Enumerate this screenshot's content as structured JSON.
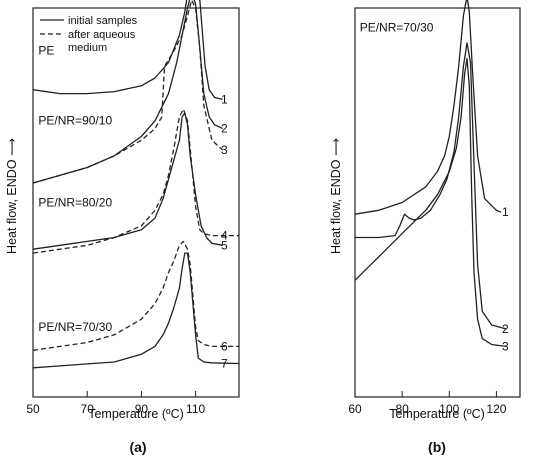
{
  "chart_data": [
    {
      "panel_label": "(a)",
      "type": "line",
      "xlabel": "Temperature (ºC)",
      "ylabel": "Heat flow, ENDO",
      "xlim": [
        50,
        126
      ],
      "x_ticks": [
        50,
        70,
        90,
        110
      ],
      "grid": false,
      "legend": {
        "placement": "top-left",
        "entries": [
          {
            "style": "solid",
            "label": "initial samples"
          },
          {
            "style": "dashed",
            "label": "after aqueous medium"
          }
        ]
      },
      "annotations": [
        {
          "text": "PE",
          "x": 52,
          "y": 0.88
        },
        {
          "text": "PE/NR=90/10",
          "x": 52,
          "y": 0.7
        },
        {
          "text": "PE/NR=80/20",
          "x": 52,
          "y": 0.49
        },
        {
          "text": "PE/NR=70/30",
          "x": 52,
          "y": 0.17
        }
      ],
      "series": [
        {
          "name": "1",
          "style": "solid",
          "x": [
            50,
            60,
            70,
            80,
            90,
            95,
            100,
            104,
            106,
            108,
            109.5,
            110.5,
            112,
            113.5,
            115,
            117,
            120
          ],
          "y": [
            0.79,
            0.78,
            0.78,
            0.785,
            0.8,
            0.82,
            0.86,
            0.93,
            0.99,
            1.08,
            1.12,
            1.11,
            0.98,
            0.85,
            0.79,
            0.77,
            0.765
          ]
        },
        {
          "name": "2",
          "style": "solid",
          "x": [
            50,
            60,
            70,
            80,
            90,
            95,
            100,
            103,
            105,
            107,
            108.5,
            110,
            111.5,
            113,
            115,
            117,
            120
          ],
          "y": [
            0.55,
            0.57,
            0.59,
            0.62,
            0.67,
            0.71,
            0.78,
            0.86,
            0.93,
            1.0,
            1.04,
            1.01,
            0.9,
            0.78,
            0.72,
            0.7,
            0.69
          ]
        },
        {
          "name": "3",
          "style": "dashed",
          "x": [
            50,
            60,
            70,
            80,
            90,
            95,
            97.5,
            98.5,
            102,
            105,
            107,
            108.5,
            110,
            111.5,
            113,
            116,
            120
          ],
          "y": [
            0.55,
            0.57,
            0.59,
            0.62,
            0.66,
            0.69,
            0.72,
            0.85,
            0.89,
            0.93,
            0.98,
            1.02,
            1.0,
            0.9,
            0.75,
            0.66,
            0.635
          ]
        },
        {
          "name": "4",
          "style": "dashed",
          "x": [
            50,
            60,
            70,
            80,
            90,
            95,
            98,
            100,
            102,
            104,
            105.5,
            107,
            108.5,
            110,
            111.5,
            113,
            116,
            120,
            126
          ],
          "y": [
            0.37,
            0.38,
            0.39,
            0.41,
            0.44,
            0.48,
            0.52,
            0.57,
            0.64,
            0.72,
            0.74,
            0.71,
            0.6,
            0.49,
            0.43,
            0.42,
            0.415,
            0.415,
            0.415
          ]
        },
        {
          "name": "5",
          "style": "solid",
          "x": [
            50,
            60,
            70,
            80,
            90,
            95,
            98,
            100,
            102,
            104,
            105,
            106,
            107,
            108,
            110,
            112,
            114,
            116,
            120
          ],
          "y": [
            0.38,
            0.39,
            0.4,
            0.41,
            0.43,
            0.46,
            0.51,
            0.56,
            0.61,
            0.66,
            0.72,
            0.73,
            0.7,
            0.62,
            0.52,
            0.44,
            0.41,
            0.395,
            0.39
          ]
        },
        {
          "name": "6",
          "style": "dashed",
          "x": [
            50,
            60,
            70,
            80,
            90,
            95,
            98,
            100,
            102,
            104,
            105.5,
            107,
            108,
            109,
            110,
            111,
            113,
            116,
            120,
            126
          ],
          "y": [
            0.12,
            0.13,
            0.14,
            0.16,
            0.2,
            0.24,
            0.28,
            0.32,
            0.35,
            0.39,
            0.4,
            0.38,
            0.34,
            0.26,
            0.18,
            0.145,
            0.135,
            0.13,
            0.13,
            0.13
          ]
        },
        {
          "name": "7",
          "style": "solid",
          "x": [
            50,
            60,
            70,
            80,
            90,
            95,
            98,
            100,
            102,
            104,
            105,
            106,
            107,
            108,
            109,
            110,
            111,
            113,
            116,
            120,
            126
          ],
          "y": [
            0.075,
            0.08,
            0.085,
            0.09,
            0.11,
            0.13,
            0.16,
            0.19,
            0.23,
            0.28,
            0.33,
            0.37,
            0.37,
            0.32,
            0.24,
            0.16,
            0.1,
            0.09,
            0.088,
            0.087,
            0.086
          ]
        }
      ]
    },
    {
      "panel_label": "(b)",
      "type": "line",
      "xlabel": "Temperature (ºC)",
      "ylabel": "Heat flow, ENDO",
      "xlim": [
        60,
        130
      ],
      "x_ticks": [
        60,
        80,
        100,
        120
      ],
      "grid": false,
      "annotations": [
        {
          "text": "PE/NR=70/30",
          "x": 62,
          "y": 0.94
        }
      ],
      "series": [
        {
          "name": "1",
          "style": "solid",
          "x": [
            60,
            70,
            80,
            90,
            95,
            98,
            100,
            102,
            104,
            106,
            107.5,
            108.5,
            110,
            112,
            115,
            120,
            122
          ],
          "y": [
            0.47,
            0.48,
            0.5,
            0.54,
            0.58,
            0.62,
            0.67,
            0.75,
            0.85,
            0.98,
            1.03,
            0.99,
            0.82,
            0.62,
            0.51,
            0.48,
            0.475
          ]
        },
        {
          "name": "2",
          "style": "solid",
          "x": [
            60,
            70,
            77,
            79,
            81,
            83,
            85,
            88,
            92,
            96,
            99,
            102,
            104,
            106,
            107.5,
            109,
            110.5,
            112,
            114,
            118,
            124
          ],
          "y": [
            0.41,
            0.41,
            0.415,
            0.44,
            0.47,
            0.46,
            0.455,
            0.46,
            0.48,
            0.52,
            0.56,
            0.63,
            0.72,
            0.85,
            0.91,
            0.86,
            0.6,
            0.34,
            0.22,
            0.185,
            0.175
          ]
        },
        {
          "name": "3",
          "style": "solid",
          "x": [
            60,
            65,
            70,
            80,
            90,
            95,
            100,
            103,
            105,
            106.5,
            107.5,
            108.5,
            109.5,
            110.5,
            112,
            114,
            118,
            124
          ],
          "y": [
            0.3,
            0.33,
            0.36,
            0.42,
            0.48,
            0.52,
            0.58,
            0.64,
            0.72,
            0.83,
            0.87,
            0.8,
            0.52,
            0.32,
            0.2,
            0.15,
            0.135,
            0.13
          ]
        }
      ]
    }
  ]
}
